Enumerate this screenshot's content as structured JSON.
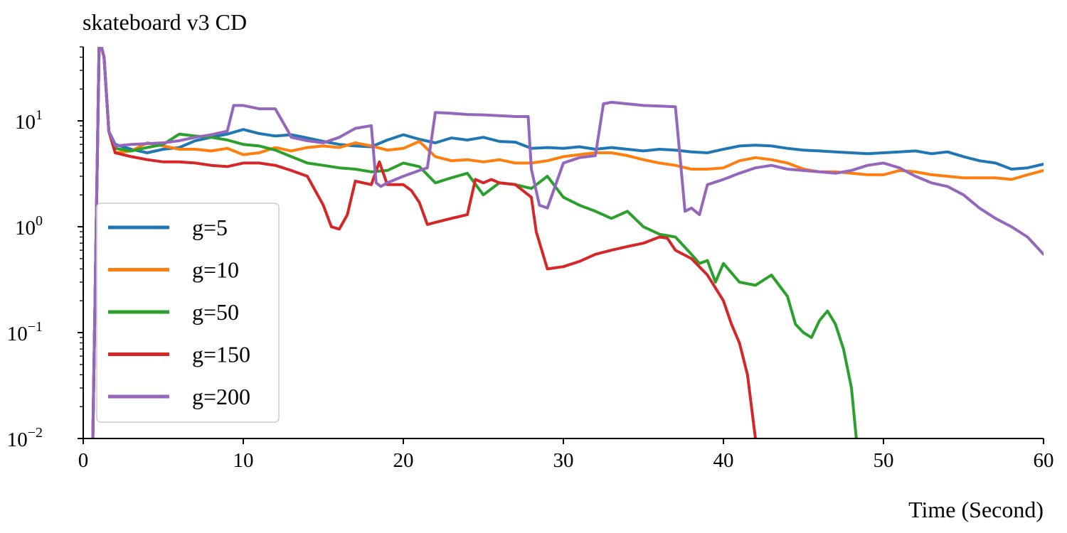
{
  "chart_data": {
    "type": "line",
    "title": "skateboard v3 CD",
    "xlabel": "Time (Second)",
    "ylabel": "",
    "xlim": [
      0,
      60
    ],
    "ylim": [
      0.01,
      50
    ],
    "yscale": "log",
    "grid": false,
    "legend_position": "center-left",
    "x_ticks": [
      "0",
      "10",
      "20",
      "30",
      "40",
      "50",
      "60"
    ],
    "y_ticks": [
      {
        "base": "10",
        "exp": "−2",
        "value": 0.01
      },
      {
        "base": "10",
        "exp": "−1",
        "value": 0.1
      },
      {
        "base": "10",
        "exp": "0",
        "value": 1
      },
      {
        "base": "10",
        "exp": "1",
        "value": 10
      }
    ],
    "series": [
      {
        "name": "g=5",
        "color": "#1f77b4",
        "x": [
          0.6,
          1.0,
          1.3,
          1.6,
          2,
          3,
          4,
          5,
          6,
          7,
          8,
          9,
          10,
          11,
          12,
          13,
          14,
          15,
          16,
          17,
          18,
          19,
          20,
          21,
          22,
          23,
          24,
          25,
          26,
          27,
          28,
          29,
          30,
          31,
          32,
          33,
          34,
          35,
          36,
          37,
          38,
          39,
          40,
          41,
          42,
          43,
          44,
          45,
          46,
          47,
          48,
          49,
          50,
          51,
          52,
          53,
          54,
          55,
          56,
          57,
          58,
          59,
          60
        ],
        "y": [
          0.01,
          60,
          40,
          8,
          6.0,
          5.4,
          5.0,
          5.4,
          5.6,
          6.5,
          7.0,
          7.5,
          8.3,
          7.6,
          7.2,
          7.4,
          6.9,
          6.4,
          6.0,
          5.8,
          5.7,
          6.6,
          7.4,
          6.7,
          6.2,
          6.9,
          6.6,
          7.0,
          6.4,
          6.3,
          5.5,
          5.6,
          5.5,
          5.7,
          5.4,
          5.6,
          5.4,
          5.2,
          5.4,
          5.3,
          5.1,
          5.0,
          5.4,
          5.8,
          5.9,
          5.8,
          5.5,
          5.3,
          5.2,
          5.1,
          5.0,
          4.9,
          5.0,
          5.1,
          5.2,
          4.9,
          5.1,
          4.6,
          4.2,
          4.0,
          3.5,
          3.6,
          3.9
        ]
      },
      {
        "name": "g=10",
        "color": "#ff7f0e",
        "x": [
          0.6,
          1.0,
          1.3,
          1.6,
          2,
          3,
          4,
          5,
          6,
          7,
          8,
          9,
          10,
          11,
          12,
          13,
          14,
          15,
          16,
          17,
          18,
          19,
          20,
          21,
          22,
          23,
          24,
          25,
          26,
          27,
          28,
          29,
          30,
          31,
          32,
          33,
          34,
          35,
          36,
          37,
          38,
          39,
          40,
          41,
          42,
          43,
          44,
          45,
          46,
          47,
          48,
          49,
          50,
          51,
          52,
          53,
          54,
          55,
          56,
          57,
          58,
          59,
          60
        ],
        "y": [
          0.01,
          60,
          40,
          8,
          5.0,
          5.2,
          6.2,
          5.8,
          5.4,
          5.4,
          5.2,
          5.5,
          4.8,
          5.0,
          5.6,
          5.2,
          5.6,
          5.8,
          5.6,
          6.2,
          5.8,
          5.3,
          5.5,
          6.4,
          4.6,
          4.2,
          4.3,
          4.1,
          4.3,
          4.0,
          4.0,
          4.2,
          4.6,
          4.8,
          5.0,
          5.0,
          4.7,
          4.3,
          4.0,
          3.8,
          3.5,
          3.5,
          3.6,
          4.2,
          4.5,
          4.3,
          4.0,
          3.5,
          3.3,
          3.3,
          3.2,
          3.1,
          3.1,
          3.4,
          3.3,
          3.1,
          3.0,
          2.9,
          2.9,
          2.9,
          2.8,
          3.1,
          3.4
        ]
      },
      {
        "name": "g=50",
        "color": "#2ca02c",
        "x": [
          0.6,
          1.0,
          1.3,
          1.6,
          2,
          3,
          4,
          5,
          6,
          7,
          8,
          9,
          10,
          11,
          12,
          13,
          14,
          15,
          16,
          17,
          18,
          19,
          20,
          21,
          22,
          23,
          24,
          25,
          26,
          27,
          28,
          29,
          30,
          31,
          32,
          33,
          34,
          35,
          36,
          37,
          38,
          38.5,
          39,
          39.5,
          40,
          41,
          42,
          43,
          44,
          44.5,
          45,
          45.5,
          46,
          46.5,
          47,
          47.5,
          48,
          48.3
        ],
        "y": [
          0.01,
          60,
          40,
          8,
          5.5,
          5.2,
          5.6,
          6.0,
          7.5,
          7.2,
          7.0,
          6.6,
          6.0,
          5.8,
          5.3,
          4.6,
          4.0,
          3.8,
          3.6,
          3.5,
          3.3,
          3.4,
          4.0,
          3.7,
          2.6,
          2.9,
          3.2,
          2.0,
          2.6,
          2.5,
          2.3,
          3.0,
          1.9,
          1.6,
          1.4,
          1.2,
          1.4,
          1.0,
          0.85,
          0.8,
          0.55,
          0.45,
          0.48,
          0.3,
          0.45,
          0.3,
          0.28,
          0.35,
          0.22,
          0.12,
          0.1,
          0.09,
          0.13,
          0.16,
          0.12,
          0.07,
          0.03,
          0.01
        ]
      },
      {
        "name": "g=150",
        "color": "#d62728",
        "x": [
          0.6,
          1.0,
          1.3,
          1.6,
          2,
          3,
          4,
          5,
          6,
          7,
          8,
          9,
          10,
          11,
          12,
          13,
          14,
          15,
          15.5,
          16,
          16.5,
          17,
          18,
          18.5,
          19,
          20,
          20.5,
          21,
          21.5,
          22,
          23,
          24,
          24.5,
          25,
          25.5,
          26,
          27,
          28,
          28.3,
          29,
          30,
          31,
          32,
          33,
          34,
          35,
          36,
          36.5,
          37,
          38,
          39,
          40,
          40.5,
          41,
          41.5,
          42
        ],
        "y": [
          0.01,
          60,
          40,
          8,
          5.0,
          4.6,
          4.3,
          4.1,
          4.1,
          4.0,
          3.8,
          3.7,
          4.0,
          4.0,
          3.8,
          3.4,
          3.0,
          1.6,
          1.0,
          0.95,
          1.3,
          2.7,
          2.5,
          4.1,
          2.5,
          2.5,
          2.2,
          1.7,
          1.05,
          1.1,
          1.2,
          1.3,
          2.8,
          2.6,
          2.8,
          2.6,
          2.5,
          1.9,
          0.9,
          0.4,
          0.42,
          0.47,
          0.55,
          0.6,
          0.65,
          0.7,
          0.8,
          0.78,
          0.6,
          0.5,
          0.35,
          0.2,
          0.12,
          0.08,
          0.04,
          0.01
        ]
      },
      {
        "name": "g=200",
        "color": "#9467bd",
        "x": [
          0.6,
          1.0,
          1.3,
          1.6,
          2,
          3,
          4,
          5,
          6,
          7,
          8,
          9,
          9.4,
          10,
          11,
          12,
          12.8,
          13,
          14,
          15,
          16,
          17,
          18,
          18.3,
          18.6,
          19,
          20,
          21,
          21.5,
          22,
          23,
          24,
          25,
          26,
          27,
          27.8,
          28,
          28.5,
          29,
          30,
          31,
          32,
          32.5,
          33,
          34,
          35,
          36,
          37,
          37.6,
          38,
          38.5,
          39,
          40,
          41,
          42,
          43,
          44,
          45,
          46,
          47,
          48,
          49,
          50,
          51,
          52,
          53,
          54,
          55,
          56,
          57,
          58,
          59,
          60
        ],
        "y": [
          0.01,
          60,
          40,
          8,
          5.8,
          6.0,
          6.1,
          6.2,
          6.5,
          7.0,
          7.4,
          8.0,
          14,
          14,
          13,
          13,
          8.0,
          7.0,
          6.5,
          6.2,
          7.0,
          8.5,
          9.0,
          2.6,
          2.4,
          2.6,
          3.0,
          3.4,
          3.6,
          12,
          11.8,
          11.5,
          11.4,
          11.2,
          11.0,
          11.0,
          3.5,
          1.6,
          1.5,
          4.0,
          4.5,
          4.7,
          14.5,
          15,
          14.5,
          14,
          13.8,
          13.6,
          1.4,
          1.5,
          1.3,
          2.5,
          2.8,
          3.2,
          3.6,
          3.8,
          3.5,
          3.4,
          3.3,
          3.2,
          3.4,
          3.8,
          4.0,
          3.6,
          3.0,
          2.6,
          2.4,
          2.0,
          1.5,
          1.2,
          1.0,
          0.8,
          0.55
        ]
      }
    ]
  }
}
